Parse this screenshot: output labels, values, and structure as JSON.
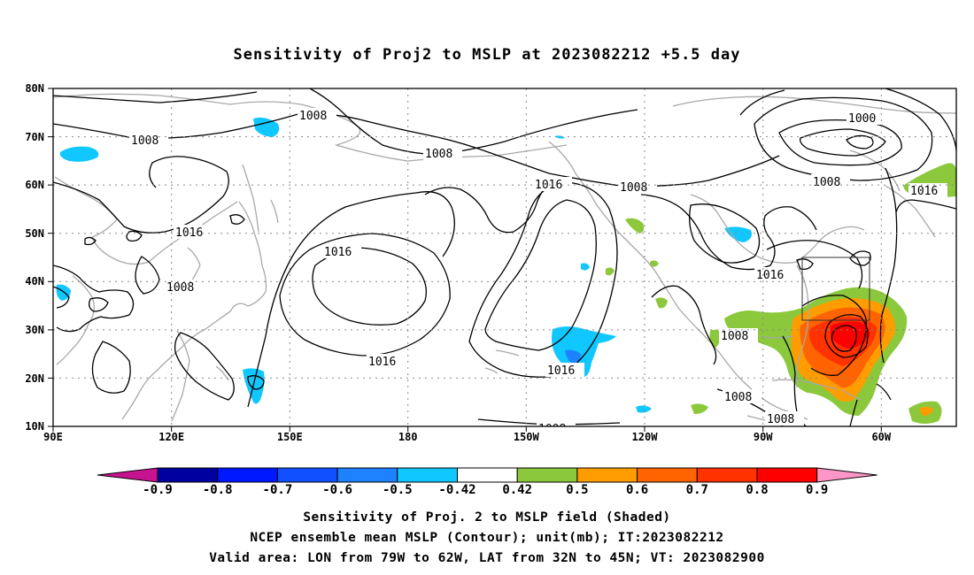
{
  "title": "Sensitivity of Proj2 to MSLP at 2023082212 +5.5 day",
  "lat_ticks": [
    "80N",
    "70N",
    "60N",
    "50N",
    "40N",
    "30N",
    "20N",
    "10N"
  ],
  "lon_ticks": [
    "90E",
    "120E",
    "150E",
    "180",
    "150W",
    "120W",
    "90W",
    "60W"
  ],
  "contour_labels": {
    "c1008_nw": "1008",
    "c1008_top": "1008",
    "c1008_mid": "1008",
    "c1016_asia": "1016",
    "c1016_npac": "1016",
    "c1008_asia2": "1008",
    "c1016_sub": "1016",
    "c1016_enpac": "1016",
    "c1016_ne": "1016",
    "c1008_ne": "1008",
    "c1008_ca": "1008",
    "c1000": "1000",
    "c1016_na": "1016",
    "c1008_gulf": "1008",
    "c1008_s1": "1008",
    "c1008_s2": "1008",
    "c1008_bottom": "1008",
    "c1016_atl": "1016"
  },
  "colorbar": {
    "labels": [
      "-0.9",
      "-0.8",
      "-0.7",
      "-0.6",
      "-0.5",
      "-0.42",
      "0.42",
      "0.5",
      "0.6",
      "0.7",
      "0.8",
      "0.9"
    ],
    "colors": [
      "#c81390",
      "#0000a0",
      "#0018ff",
      "#1050ff",
      "#1e82ff",
      "#10c8ff",
      "#ffffff",
      "#8cc83c",
      "#ff9d00",
      "#ff6400",
      "#ff3200",
      "#ff0000",
      "#ff96c8"
    ]
  },
  "captions": {
    "line1": "Sensitivity of Proj. 2 to MSLP field (Shaded)",
    "line2": "NCEP ensemble mean MSLP (Contour); unit(mb); IT:2023082212",
    "line3": "Valid area: LON from 79W to 62W, LAT from 32N to 45N; VT: 2023082900"
  }
}
